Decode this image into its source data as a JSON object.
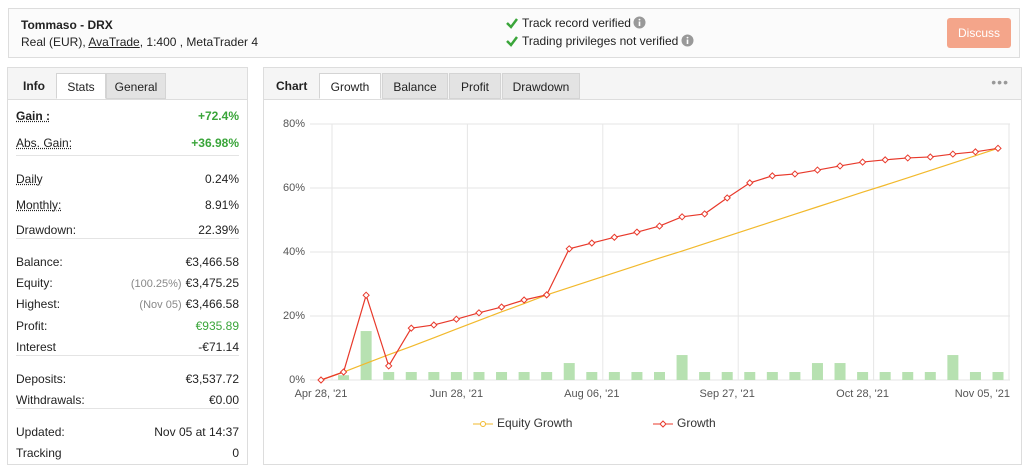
{
  "header": {
    "title": "Tommaso - DRX",
    "account_type": "Real (EUR),",
    "broker": "AvaTrade",
    "account_details": ", 1:400 , MetaTrader 4",
    "verification": [
      "Track record verified",
      "Trading privileges not verified"
    ],
    "button": "Discuss"
  },
  "left_panel": {
    "tabs": [
      "Info",
      "Stats",
      "General"
    ],
    "active_tab": 1,
    "groups": [
      [
        {
          "label": "Gain :",
          "value": "+72.4%",
          "positive": true,
          "emphasis": true,
          "underline": true
        },
        {
          "label": "Abs. Gain:",
          "value": "+36.98%",
          "positive": true,
          "underline": true
        }
      ],
      [
        {
          "label": "Daily",
          "value": "0.24%",
          "underline": true
        },
        {
          "label": "Monthly:",
          "value": "8.91%",
          "underline": true
        },
        {
          "label": "Drawdown:",
          "value": "22.39%"
        }
      ],
      [
        {
          "label": "Balance:",
          "value": "€3,466.58"
        },
        {
          "label": "Equity:",
          "note": "(100.25%)",
          "value": "€3,475.25"
        },
        {
          "label": "Highest:",
          "note": "(Nov 05)",
          "value": "€3,466.58"
        },
        {
          "label": "Profit:",
          "value": "€935.89",
          "positive": true
        },
        {
          "label": "Interest",
          "value": "-€71.14"
        }
      ],
      [
        {
          "label": "Deposits:",
          "value": "€3,537.72"
        },
        {
          "label": "Withdrawals:",
          "value": "€0.00"
        }
      ],
      [
        {
          "label": "Updated:",
          "value": "Nov 05 at 14:37"
        },
        {
          "label": "Tracking",
          "value": "0"
        }
      ]
    ]
  },
  "right_panel": {
    "label": "Chart",
    "tabs": [
      "Growth",
      "Balance",
      "Profit",
      "Drawdown"
    ],
    "active_tab": 0
  },
  "chart_data": {
    "type": "line",
    "categories": [
      "Apr 28, '21",
      null,
      null,
      null,
      null,
      null,
      "Jun 28, '21",
      null,
      null,
      null,
      null,
      null,
      "Aug 06, '21",
      null,
      null,
      null,
      null,
      null,
      "Sep 27, '21",
      null,
      null,
      null,
      null,
      null,
      "Oct 28, '21",
      null,
      null,
      null,
      null,
      null,
      "Nov 05, '21"
    ],
    "series": [
      {
        "name": "Equity Growth",
        "color": "#f2b92c",
        "values": [
          0,
          2.5,
          5.2,
          7.9,
          10.5,
          13.2,
          15.9,
          18.6,
          21.3,
          23.9,
          26.6,
          28.9,
          31.2,
          33.5,
          35.8,
          38.1,
          40.3,
          42.6,
          44.9,
          47.2,
          49.5,
          51.8,
          54.1,
          56.4,
          58.7,
          60.9,
          63.2,
          65.5,
          67.8,
          70.1,
          72.4
        ]
      },
      {
        "name": "Growth",
        "color": "#e8392b",
        "markers": true,
        "values": [
          0,
          2.5,
          26.5,
          4.4,
          16.2,
          17.2,
          19,
          21,
          22.8,
          25,
          26.6,
          41,
          42.8,
          44.6,
          46.2,
          48.1,
          51,
          51.9,
          56.9,
          61.6,
          63.8,
          64.4,
          65.6,
          66.9,
          68.1,
          68.8,
          69.4,
          69.7,
          70.6,
          71.3,
          72.4
        ]
      },
      {
        "type": "bar",
        "color": "#b7e1b1",
        "values": [
          null,
          1.5,
          15.3,
          2.5,
          2.5,
          2.5,
          2.5,
          2.5,
          2.5,
          2.5,
          2.5,
          5.3,
          2.5,
          2.5,
          2.5,
          2.5,
          7.8,
          2.5,
          2.5,
          2.5,
          2.5,
          2.5,
          5.3,
          5.3,
          2.5,
          2.5,
          2.5,
          2.5,
          7.8,
          2.5,
          2.5
        ]
      }
    ],
    "ylim": [
      0,
      80
    ],
    "yticks": [
      {
        "value": 0,
        "label": "0%"
      },
      {
        "value": 20,
        "label": "20%"
      },
      {
        "value": 40,
        "label": "40%"
      },
      {
        "value": 60,
        "label": "60%"
      },
      {
        "value": 80,
        "label": "80%"
      }
    ],
    "grid": true,
    "legend": "bottom"
  }
}
